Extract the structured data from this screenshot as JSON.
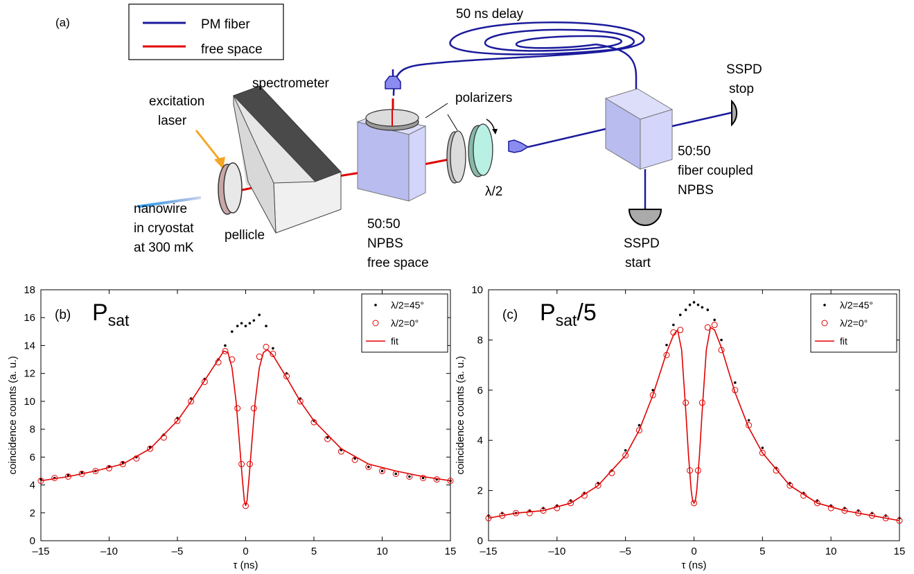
{
  "setup": {
    "panel_label": "(a)",
    "legend": {
      "pm_fiber": "PM  fiber",
      "free_space": "free space"
    },
    "labels": {
      "delay": "50 ns delay",
      "spectrometer": "spectrometer",
      "excitation_1": "excitation",
      "excitation_2": "laser",
      "polarizers": "polarizers",
      "half_wave": "λ/2",
      "nanowire_1": "nanowire",
      "nanowire_2": "in cryostat",
      "nanowire_3": "at 300 mK",
      "pellicle": "pellicle",
      "npbs_fs_1": "50:50",
      "npbs_fs_2": "NPBS",
      "npbs_fs_3": "free space",
      "ssps_stop_1": "SSPD",
      "ssps_stop_2": "stop",
      "npbs_fc_1": "50:50",
      "npbs_fc_2": "fiber coupled",
      "npbs_fc_3": "NPBS",
      "ssps_start_1": "SSPD",
      "ssps_start_2": "start"
    },
    "colors": {
      "fiber": "#1a1a9c",
      "free_space": "#e00000",
      "laser": "#f5a623",
      "cube": "#c9ccf5",
      "spectrometer_top": "#4a4a4a",
      "detector": "#aaaaaa"
    }
  },
  "chart_data": [
    {
      "type": "scatter",
      "panel_label": "(b)",
      "title": "P",
      "title_sub": "sat",
      "title_suffix": "",
      "xlabel": "τ (ns)",
      "ylabel": "coincidence counts (a. u.)",
      "xlim": [
        -15,
        15
      ],
      "ylim": [
        0,
        18
      ],
      "xticks": [
        -15,
        -10,
        -5,
        0,
        5,
        10,
        15
      ],
      "xtick_labels": [
        "–15",
        "–10",
        "–5",
        "0",
        "5",
        "10",
        "15"
      ],
      "yticks": [
        0,
        2,
        4,
        6,
        8,
        10,
        12,
        14,
        16,
        18
      ],
      "legend": [
        {
          "label": "λ/2=45°",
          "marker": "dot",
          "color": "#000000"
        },
        {
          "label": "λ/2=0°",
          "marker": "circle",
          "color": "#e00000"
        },
        {
          "label": "fit",
          "marker": "line",
          "color": "#e00000"
        }
      ],
      "series": [
        {
          "name": "λ/2=45°",
          "marker": "dot",
          "color": "#000000",
          "x": [
            -15,
            -14,
            -13,
            -12,
            -11,
            -10,
            -9,
            -8,
            -7,
            -6,
            -5,
            -4,
            -3,
            -2,
            -1.5,
            -1,
            -0.6,
            -0.3,
            0,
            0.3,
            0.6,
            1,
            1.5,
            2,
            3,
            4,
            5,
            6,
            7,
            8,
            9,
            10,
            11,
            12,
            13,
            14,
            15
          ],
          "y": [
            4.4,
            4.5,
            4.7,
            4.9,
            5.0,
            5.3,
            5.6,
            6.0,
            6.7,
            7.6,
            8.8,
            10.2,
            11.6,
            13.0,
            14.0,
            15.0,
            15.4,
            15.6,
            15.4,
            15.6,
            15.8,
            16.2,
            15.4,
            13.8,
            12.0,
            10.2,
            8.6,
            7.4,
            6.5,
            5.9,
            5.3,
            5.0,
            4.8,
            4.6,
            4.5,
            4.4,
            4.3
          ]
        },
        {
          "name": "λ/2=0°",
          "marker": "circle",
          "color": "#e00000",
          "x": [
            -15,
            -14,
            -13,
            -12,
            -11,
            -10,
            -9,
            -8,
            -7,
            -6,
            -5,
            -4,
            -3,
            -2,
            -1.5,
            -1,
            -0.6,
            -0.3,
            0,
            0.3,
            0.6,
            1,
            1.5,
            2,
            3,
            4,
            5,
            6,
            7,
            8,
            9,
            10,
            11,
            12,
            13,
            14,
            15
          ],
          "y": [
            4.3,
            4.5,
            4.6,
            4.8,
            5.0,
            5.2,
            5.5,
            5.9,
            6.6,
            7.4,
            8.6,
            10.0,
            11.4,
            12.8,
            13.6,
            13.0,
            9.5,
            5.5,
            2.5,
            5.5,
            9.5,
            13.2,
            13.9,
            13.4,
            11.8,
            10.0,
            8.5,
            7.3,
            6.4,
            5.8,
            5.3,
            5.0,
            4.8,
            4.6,
            4.5,
            4.4,
            4.3
          ]
        }
      ],
      "fit": {
        "name": "fit",
        "color": "#e00000",
        "x": [
          -15,
          -13,
          -11,
          -9,
          -7,
          -5,
          -4,
          -3,
          -2,
          -1.6,
          -1.3,
          -1.0,
          -0.7,
          -0.45,
          -0.25,
          -0.1,
          0,
          0.1,
          0.25,
          0.45,
          0.7,
          1.0,
          1.3,
          1.6,
          2,
          3,
          4,
          5,
          7,
          9,
          11,
          13,
          15
        ],
        "y": [
          4.3,
          4.6,
          5.0,
          5.5,
          6.6,
          8.6,
          10.0,
          11.5,
          13.0,
          13.6,
          13.5,
          12.4,
          10.0,
          7.0,
          4.5,
          2.9,
          2.5,
          2.9,
          4.5,
          7.0,
          10.0,
          12.4,
          13.5,
          13.7,
          13.3,
          11.7,
          10.0,
          8.6,
          6.6,
          5.5,
          5.0,
          4.6,
          4.3
        ]
      }
    },
    {
      "type": "scatter",
      "panel_label": "(c)",
      "title": "P",
      "title_sub": "sat",
      "title_suffix": "/5",
      "xlabel": "τ (ns)",
      "ylabel": "coincidence counts (a. u.)",
      "xlim": [
        -15,
        15
      ],
      "ylim": [
        0,
        10
      ],
      "xticks": [
        -15,
        -10,
        -5,
        0,
        5,
        10,
        15
      ],
      "xtick_labels": [
        "–15",
        "–10",
        "–5",
        "0",
        "5",
        "10",
        "15"
      ],
      "yticks": [
        0,
        2,
        4,
        6,
        8,
        10
      ],
      "legend": [
        {
          "label": "λ/2=45°",
          "marker": "dot",
          "color": "#000000"
        },
        {
          "label": "λ/2=0°",
          "marker": "circle",
          "color": "#e00000"
        },
        {
          "label": "fit",
          "marker": "line",
          "color": "#e00000"
        }
      ],
      "series": [
        {
          "name": "λ/2=45°",
          "marker": "dot",
          "color": "#000000",
          "x": [
            -15,
            -14,
            -13,
            -12,
            -11,
            -10,
            -9,
            -8,
            -7,
            -6,
            -5,
            -4,
            -3,
            -2,
            -1.5,
            -1,
            -0.6,
            -0.3,
            0,
            0.3,
            0.6,
            1,
            1.5,
            2,
            3,
            4,
            5,
            6,
            7,
            8,
            9,
            10,
            11,
            12,
            13,
            14,
            15
          ],
          "y": [
            1.0,
            1.1,
            1.1,
            1.2,
            1.3,
            1.4,
            1.6,
            1.9,
            2.3,
            2.8,
            3.6,
            4.6,
            6.0,
            7.8,
            8.6,
            9.0,
            9.2,
            9.4,
            9.5,
            9.4,
            9.3,
            9.2,
            8.8,
            8.0,
            6.3,
            4.8,
            3.7,
            2.9,
            2.3,
            1.9,
            1.6,
            1.4,
            1.3,
            1.2,
            1.1,
            1.0,
            0.9
          ]
        },
        {
          "name": "λ/2=0°",
          "marker": "circle",
          "color": "#e00000",
          "x": [
            -15,
            -14,
            -13,
            -12,
            -11,
            -10,
            -9,
            -8,
            -7,
            -6,
            -5,
            -4,
            -3,
            -2,
            -1.5,
            -1,
            -0.6,
            -0.3,
            0,
            0.3,
            0.6,
            1,
            1.5,
            2,
            3,
            4,
            5,
            6,
            7,
            8,
            9,
            10,
            11,
            12,
            13,
            14,
            15
          ],
          "y": [
            0.9,
            1.0,
            1.1,
            1.1,
            1.2,
            1.3,
            1.5,
            1.8,
            2.2,
            2.7,
            3.4,
            4.4,
            5.8,
            7.4,
            8.3,
            8.4,
            5.5,
            2.8,
            1.5,
            2.8,
            5.5,
            8.5,
            8.6,
            7.6,
            6.0,
            4.6,
            3.5,
            2.8,
            2.2,
            1.8,
            1.5,
            1.3,
            1.2,
            1.1,
            1.0,
            0.9,
            0.8
          ]
        }
      ],
      "fit": {
        "name": "fit",
        "color": "#e00000",
        "x": [
          -15,
          -13,
          -11,
          -9,
          -7,
          -5,
          -4,
          -3,
          -2,
          -1.5,
          -1.2,
          -0.9,
          -0.6,
          -0.4,
          -0.2,
          -0.1,
          0,
          0.1,
          0.2,
          0.4,
          0.6,
          0.9,
          1.2,
          1.5,
          2,
          3,
          4,
          5,
          7,
          9,
          11,
          13,
          15
        ],
        "y": [
          0.9,
          1.1,
          1.2,
          1.5,
          2.2,
          3.4,
          4.4,
          5.8,
          7.5,
          8.2,
          8.4,
          7.6,
          5.2,
          3.4,
          2.0,
          1.6,
          1.5,
          1.6,
          2.0,
          3.4,
          5.2,
          7.6,
          8.5,
          8.4,
          7.7,
          5.9,
          4.5,
          3.5,
          2.2,
          1.5,
          1.2,
          1.0,
          0.8
        ]
      }
    }
  ]
}
